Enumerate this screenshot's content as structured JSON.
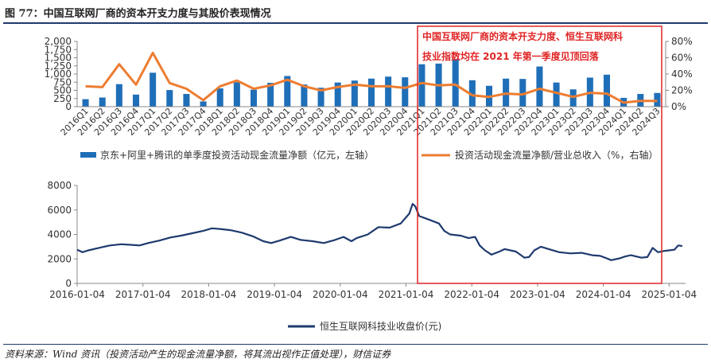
{
  "figure": {
    "title": "图 77：中国互联网厂商的资本开支力度与其股价表现情况",
    "footer": "资料来源：Wind 资讯（投资活动产生的现金流量净额，将其流出视作正值处理），财信证券",
    "annotation": [
      "中国互联网厂商的资本开支力度、恒生互联网科",
      "技业指数均在 2021 年第一季度见顶回落"
    ]
  },
  "colors": {
    "bar": "#1f6fb8",
    "ratio_line": "#ed7d31",
    "index_line": "#1f3a6e",
    "highlight": "#e02424",
    "axis": "#888888",
    "text": "#333333"
  },
  "chart_data": [
    {
      "type": "bar",
      "title": "",
      "categories": [
        "2016Q1",
        "2016Q2",
        "2016Q3",
        "2016Q4",
        "2017Q1",
        "2017Q2",
        "2017Q3",
        "2017Q4",
        "2018Q1",
        "2018Q2",
        "2018Q3",
        "2018Q4",
        "2019Q1",
        "2019Q2",
        "2019Q3",
        "2019Q4",
        "2020Q1",
        "2020Q2",
        "2020Q3",
        "2020Q4",
        "2021Q1",
        "2021Q2",
        "2021Q3",
        "2021Q4",
        "2022Q1",
        "2022Q2",
        "2022Q3",
        "2022Q4",
        "2023Q1",
        "2023Q2",
        "2023Q3",
        "2023Q4",
        "2024Q1",
        "2024Q2",
        "2024Q3"
      ],
      "series": [
        {
          "name": "京东+阿里+腾讯的单季度投资活动现金流量净额（亿元，左轴）",
          "axis": "left",
          "kind": "bar",
          "values": [
            230,
            280,
            690,
            370,
            1040,
            510,
            390,
            160,
            560,
            750,
            520,
            730,
            940,
            680,
            580,
            740,
            800,
            860,
            920,
            900,
            1300,
            1320,
            1460,
            810,
            640,
            860,
            850,
            1230,
            740,
            530,
            890,
            980,
            270,
            390,
            420
          ]
        },
        {
          "name": "投资活动现金流量净额/营业总收入（%，右轴）",
          "axis": "right",
          "kind": "line",
          "values": [
            25,
            24,
            52,
            27,
            66,
            29,
            22,
            8,
            25,
            32,
            22,
            26,
            33,
            25,
            20,
            24,
            27,
            25,
            25,
            23,
            29,
            26,
            27,
            14,
            12,
            16,
            15,
            22,
            17,
            12,
            17,
            16,
            5,
            7,
            7
          ]
        }
      ],
      "y_left": {
        "min": 0,
        "max": 2000,
        "ticks": [
          "0",
          "250",
          "500",
          "750",
          "1,000",
          "1,250",
          "1,500",
          "1,750",
          "2,000"
        ]
      },
      "y_right": {
        "min": 0,
        "max": 80,
        "ticks": [
          "0%",
          "20%",
          "40%",
          "60%",
          "80%"
        ]
      },
      "legend_position": "bottom"
    },
    {
      "type": "line",
      "title": "",
      "series_name": "恒生互联网科技业收盘价(元)",
      "x_ticks": [
        "2016-01-04",
        "2017-01-04",
        "2018-01-04",
        "2019-01-04",
        "2020-01-04",
        "2021-01-04",
        "2022-01-04",
        "2023-01-04",
        "2024-01-04",
        "2025-01-04"
      ],
      "x_range": [
        2016.0,
        2025.25
      ],
      "y_ticks": [
        "0",
        "2000",
        "4000",
        "6000",
        "8000"
      ],
      "ylim": [
        0,
        8000
      ],
      "points": [
        [
          2016.0,
          2750
        ],
        [
          2016.08,
          2550
        ],
        [
          2016.17,
          2700
        ],
        [
          2016.33,
          2900
        ],
        [
          2016.5,
          3100
        ],
        [
          2016.67,
          3200
        ],
        [
          2016.83,
          3150
        ],
        [
          2016.95,
          3100
        ],
        [
          2017.08,
          3300
        ],
        [
          2017.25,
          3500
        ],
        [
          2017.42,
          3750
        ],
        [
          2017.58,
          3900
        ],
        [
          2017.75,
          4100
        ],
        [
          2017.92,
          4300
        ],
        [
          2018.05,
          4500
        ],
        [
          2018.17,
          4450
        ],
        [
          2018.33,
          4350
        ],
        [
          2018.5,
          4150
        ],
        [
          2018.67,
          3850
        ],
        [
          2018.83,
          3450
        ],
        [
          2018.95,
          3300
        ],
        [
          2019.08,
          3500
        ],
        [
          2019.25,
          3800
        ],
        [
          2019.4,
          3550
        ],
        [
          2019.58,
          3450
        ],
        [
          2019.75,
          3300
        ],
        [
          2019.92,
          3550
        ],
        [
          2020.05,
          3800
        ],
        [
          2020.17,
          3450
        ],
        [
          2020.25,
          3700
        ],
        [
          2020.42,
          4000
        ],
        [
          2020.58,
          4600
        ],
        [
          2020.75,
          4550
        ],
        [
          2020.92,
          4900
        ],
        [
          2021.05,
          5700
        ],
        [
          2021.1,
          6500
        ],
        [
          2021.14,
          6300
        ],
        [
          2021.2,
          5500
        ],
        [
          2021.33,
          5250
        ],
        [
          2021.5,
          4900
        ],
        [
          2021.58,
          4300
        ],
        [
          2021.67,
          4000
        ],
        [
          2021.83,
          3900
        ],
        [
          2021.95,
          3700
        ],
        [
          2022.05,
          3800
        ],
        [
          2022.12,
          3100
        ],
        [
          2022.2,
          2700
        ],
        [
          2022.3,
          2350
        ],
        [
          2022.42,
          2600
        ],
        [
          2022.5,
          2800
        ],
        [
          2022.67,
          2600
        ],
        [
          2022.75,
          2300
        ],
        [
          2022.8,
          2100
        ],
        [
          2022.87,
          2150
        ],
        [
          2022.95,
          2700
        ],
        [
          2023.05,
          3000
        ],
        [
          2023.17,
          2800
        ],
        [
          2023.33,
          2550
        ],
        [
          2023.5,
          2450
        ],
        [
          2023.67,
          2500
        ],
        [
          2023.83,
          2300
        ],
        [
          2023.95,
          2250
        ],
        [
          2024.05,
          2050
        ],
        [
          2024.12,
          1900
        ],
        [
          2024.25,
          2050
        ],
        [
          2024.33,
          2200
        ],
        [
          2024.42,
          2300
        ],
        [
          2024.5,
          2200
        ],
        [
          2024.58,
          2100
        ],
        [
          2024.67,
          2150
        ],
        [
          2024.75,
          2900
        ],
        [
          2024.83,
          2550
        ],
        [
          2024.92,
          2650
        ],
        [
          2025.0,
          2700
        ],
        [
          2025.08,
          2750
        ],
        [
          2025.14,
          3100
        ],
        [
          2025.2,
          3050
        ]
      ],
      "legend_position": "bottom"
    }
  ]
}
